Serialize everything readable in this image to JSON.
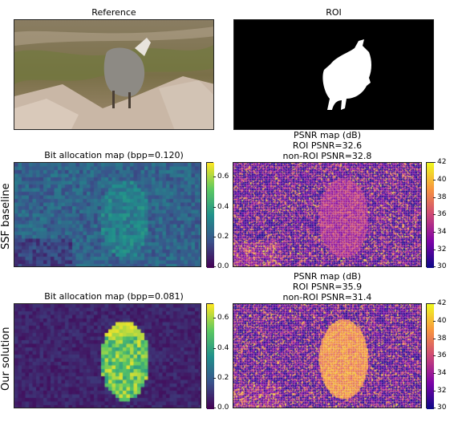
{
  "titles": {
    "reference": "Reference",
    "roi": "ROI",
    "bit_alloc_baseline": "Bit allocation map (bpp=0.120)",
    "psnr_baseline": [
      "PSNR map (dB)",
      "ROI PSNR=32.6",
      "non-ROI PSNR=32.8"
    ],
    "bit_alloc_ours": "Bit allocation map (bpp=0.081)",
    "psnr_ours": [
      "PSNR map (dB)",
      "ROI PSNR=35.9",
      "non-ROI PSNR=31.4"
    ]
  },
  "row_labels": {
    "baseline": "SSF baseline",
    "ours": "Our solution"
  },
  "colorbars": {
    "bpp_ticks": [
      "0.6",
      "0.4",
      "0.2",
      "0.0"
    ],
    "psnr_ticks": [
      "42",
      "40",
      "38",
      "36",
      "34",
      "32",
      "30"
    ]
  },
  "colors": {
    "viridis": [
      "#440154",
      "#3b528b",
      "#21918c",
      "#5ec962",
      "#fde725"
    ],
    "plasma": [
      "#0d0887",
      "#7e03a8",
      "#cc4778",
      "#f89540",
      "#f0f921"
    ],
    "roi_bg": "#000000",
    "roi_fg": "#ffffff"
  }
}
